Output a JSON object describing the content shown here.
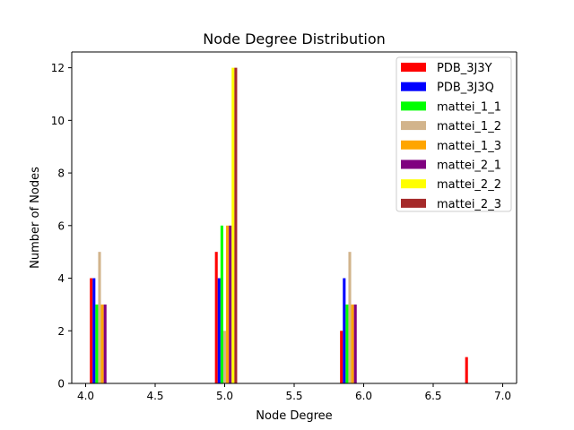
{
  "chart_data": {
    "type": "bar",
    "title": "Node Degree Distribution",
    "xlabel": "Node Degree",
    "ylabel": "Number of Nodes",
    "xlim": [
      3.9,
      7.1
    ],
    "ylim": [
      0,
      12.6
    ],
    "xticks": [
      4.0,
      4.5,
      5.0,
      5.5,
      6.0,
      6.5,
      7.0
    ],
    "xtick_labels": [
      "4.0",
      "4.5",
      "5.0",
      "5.5",
      "6.0",
      "6.5",
      "7.0"
    ],
    "yticks": [
      0,
      2,
      4,
      6,
      8,
      10,
      12
    ],
    "ytick_labels": [
      "0",
      "2",
      "4",
      "6",
      "8",
      "10",
      "12"
    ],
    "grid": false,
    "legend_position": "top-right",
    "bar_width": 0.02,
    "series": [
      {
        "name": "PDB_3J3Y",
        "color": "#ff0000",
        "points": [
          {
            "x": 4.04,
            "y": 4
          },
          {
            "x": 4.94,
            "y": 5
          },
          {
            "x": 5.84,
            "y": 2
          },
          {
            "x": 6.74,
            "y": 1
          }
        ]
      },
      {
        "name": "PDB_3J3Q",
        "color": "#0000ff",
        "points": [
          {
            "x": 4.06,
            "y": 4
          },
          {
            "x": 4.96,
            "y": 4
          },
          {
            "x": 5.86,
            "y": 4
          }
        ]
      },
      {
        "name": "mattei_1_1",
        "color": "#00ff00",
        "points": [
          {
            "x": 4.08,
            "y": 3
          },
          {
            "x": 4.98,
            "y": 6
          },
          {
            "x": 5.88,
            "y": 3
          }
        ]
      },
      {
        "name": "mattei_1_2",
        "color": "#d2b48c",
        "points": [
          {
            "x": 4.1,
            "y": 5
          },
          {
            "x": 5.0,
            "y": 2
          },
          {
            "x": 5.9,
            "y": 5
          }
        ]
      },
      {
        "name": "mattei_1_3",
        "color": "#ffa500",
        "points": [
          {
            "x": 4.12,
            "y": 3
          },
          {
            "x": 5.02,
            "y": 6
          },
          {
            "x": 5.92,
            "y": 3
          }
        ]
      },
      {
        "name": "mattei_2_1",
        "color": "#800080",
        "points": [
          {
            "x": 4.14,
            "y": 3
          },
          {
            "x": 5.04,
            "y": 6
          },
          {
            "x": 5.94,
            "y": 3
          }
        ]
      },
      {
        "name": "mattei_2_2",
        "color": "#ffff00",
        "points": [
          {
            "x": 5.06,
            "y": 12
          }
        ]
      },
      {
        "name": "mattei_2_3",
        "color": "#a52a2a",
        "points": [
          {
            "x": 5.08,
            "y": 12
          }
        ]
      }
    ]
  }
}
